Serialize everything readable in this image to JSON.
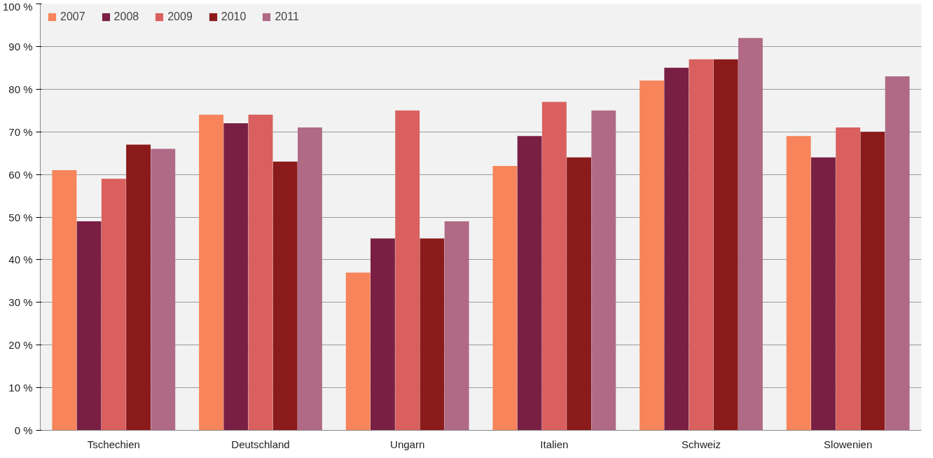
{
  "chart_data": {
    "type": "bar",
    "categories": [
      "Tschechien",
      "Deutschland",
      "Ungarn",
      "Italien",
      "Schweiz",
      "Slowenien"
    ],
    "series": [
      {
        "name": "2007",
        "color": "#f7845a",
        "values": [
          61,
          74,
          37,
          62,
          82,
          69
        ]
      },
      {
        "name": "2008",
        "color": "#7a1f44",
        "values": [
          49,
          72,
          45,
          69,
          85,
          64
        ]
      },
      {
        "name": "2009",
        "color": "#d9605e",
        "values": [
          59,
          74,
          75,
          77,
          87,
          71
        ]
      },
      {
        "name": "2010",
        "color": "#8b1a1a",
        "values": [
          67,
          63,
          45,
          64,
          87,
          70
        ]
      },
      {
        "name": "2011",
        "color": "#b06a86",
        "values": [
          66,
          71,
          49,
          75,
          92,
          83
        ]
      }
    ],
    "ylim": [
      0,
      100
    ],
    "yticks": [
      {
        "value": 0,
        "label": "0 %"
      },
      {
        "value": 10,
        "label": "10 %"
      },
      {
        "value": 20,
        "label": "20 %"
      },
      {
        "value": 30,
        "label": "30 %"
      },
      {
        "value": 40,
        "label": "40 %"
      },
      {
        "value": 50,
        "label": "50 %"
      },
      {
        "value": 60,
        "label": "60 %"
      },
      {
        "value": 70,
        "label": "70 %"
      },
      {
        "value": 80,
        "label": "80 %"
      },
      {
        "value": 90,
        "label": "90 %"
      },
      {
        "value": 100,
        "label": "100 %"
      }
    ],
    "grid": "y",
    "legend": "top left"
  }
}
